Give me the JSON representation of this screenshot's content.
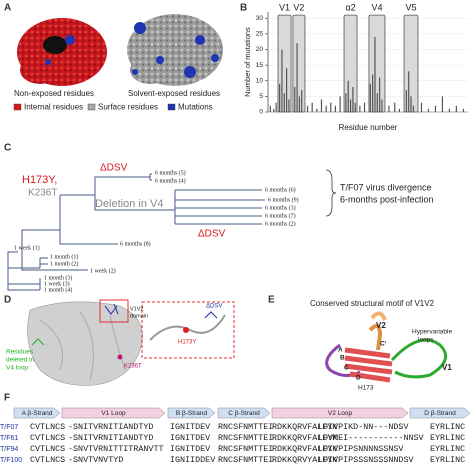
{
  "panels": {
    "a": {
      "label": "A",
      "left_caption": "Non-exposed residues",
      "right_caption": "Solvent-exposed residues",
      "legend": [
        {
          "name": "Internal residues",
          "color": "#d7191c"
        },
        {
          "name": "Surface residues",
          "color": "#a8a8a8"
        },
        {
          "name": "Mutations",
          "color": "#1f35b5"
        }
      ]
    },
    "b": {
      "label": "B"
    },
    "c": {
      "label": "C",
      "mutation": "H173Y,",
      "mutation2": "K236T",
      "deletion_top": "ΔDSV",
      "deletion_v4": "Deletion in V4",
      "deletion_bottom": "ΔDSV",
      "leaves": [
        "6 months (5)",
        "6 months (4)",
        "6 months (6)",
        "6 months (9)",
        "6 months (3)",
        "6 months (7)",
        "6 months (2)",
        "6 months (8)",
        "1 week (1)",
        "1 month (1)",
        "1 month (2)",
        "1 week (2)",
        "1 month (3)",
        "1 week (3)",
        "1 month (4)"
      ],
      "bracket_line1": "T/F07 virus divergence",
      "bracket_line2": "6-months post-infection"
    },
    "d": {
      "label": "D",
      "domain_line1": "V1V2",
      "domain_line2": "domain",
      "dsv": "ΔDSV",
      "h173y": "H173Y",
      "k236t": "K236T",
      "residues_line1": "Residues",
      "residues_line2": "deleted in",
      "residues_line3": "V4 loop"
    },
    "e": {
      "label": "E",
      "title": "Conserved structural motif of V1V2",
      "v2": "V2",
      "hyper_line1": "Hypervariable",
      "hyper_line2": "loops",
      "v1": "V1",
      "h173": "H173",
      "strands": [
        "A",
        "B",
        "C",
        "D",
        "C'"
      ]
    },
    "f": {
      "label": "F",
      "header": [
        "A β-Strand",
        "V1 Loop",
        "B β-Strand",
        "C β-Strand",
        "V2 Loop",
        "D β-Strand"
      ],
      "rows": [
        {
          "name": "T/F07",
          "segments": [
            "CVTLNCS",
            "-SNITVRNITIANDTYD",
            "IGNITDEV",
            "RNCSFNMTTEI",
            "RDKKQRVFALFYK",
            "LDIVPIKD-NN---NDSV",
            "EYRLINC"
          ]
        },
        {
          "name": "T/F61",
          "segments": [
            "CVTLNCS",
            "-SNITVRNITIANDTYD",
            "IGNITDEV",
            "RNCSFNMTTEI",
            "RDKKQRVFALFYK",
            "LDVMEI-----------NNSV",
            "EYRLINC"
          ]
        },
        {
          "name": "T/F94",
          "segments": [
            "CVTLNCS",
            "-SNVTVRNITTITRANVTT",
            "IGNITDEV",
            "RNCSFNMTTEI",
            "RDKKQRVFALFYK",
            "LDIVPIPSNNNNSSNSV",
            "EYRLINC"
          ]
        },
        {
          "name": "T/F100",
          "segments": [
            "CVTLNCS",
            "-SNVTVNVTYD",
            "IGNIIDDEV",
            "RNCSFNMTTEI",
            "RDKKQRVYALFYK",
            "LDIVPIPSSSNSSSNNDSV",
            "EYRLINC"
          ]
        }
      ]
    }
  },
  "chart_data": {
    "type": "bar",
    "y_label": "Number of mutations",
    "x_label": "Residue number",
    "color": "#555555",
    "xlim": [
      0,
      860
    ],
    "ylim": [
      0,
      32
    ],
    "yticks": [
      0,
      5,
      10,
      15,
      20,
      25,
      30
    ],
    "regions": [
      {
        "name": "V1",
        "start": 43,
        "end": 99,
        "value": 31
      },
      {
        "name": "V2",
        "start": 107,
        "end": 159,
        "value": 31
      },
      {
        "name": "α2",
        "start": 327,
        "end": 383,
        "value": 31
      },
      {
        "name": "V4",
        "start": 434,
        "end": 503,
        "value": 31
      },
      {
        "name": "V5",
        "start": 585,
        "end": 645,
        "value": 31
      }
    ],
    "x": [
      10,
      25,
      35,
      50,
      60,
      70,
      80,
      90,
      115,
      125,
      135,
      145,
      170,
      190,
      210,
      230,
      250,
      270,
      290,
      310,
      335,
      345,
      355,
      365,
      375,
      395,
      415,
      440,
      450,
      460,
      470,
      480,
      490,
      520,
      545,
      565,
      595,
      605,
      615,
      625,
      660,
      690,
      720,
      750,
      780,
      810,
      840
    ],
    "values": [
      2,
      1,
      3,
      9,
      20,
      6,
      14,
      4,
      8,
      22,
      5,
      7,
      2,
      3,
      1,
      4,
      2,
      3,
      2,
      5,
      6,
      10,
      4,
      8,
      3,
      2,
      3,
      9,
      12,
      24,
      6,
      11,
      4,
      2,
      3,
      1,
      7,
      13,
      5,
      2,
      3,
      1,
      2,
      5,
      1,
      2,
      1
    ]
  }
}
